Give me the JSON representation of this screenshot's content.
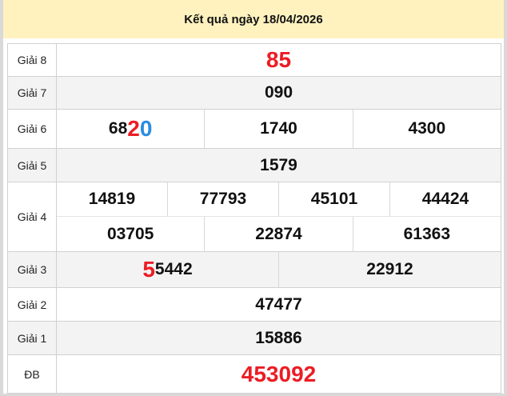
{
  "header": {
    "title": "Kết quả ngày 18/04/2026"
  },
  "colors": {
    "header_bg": "#fff2bf",
    "highlight_red": "#ec1c24",
    "highlight_blue": "#2a8de0",
    "shade": "#f3f3f3"
  },
  "prizes": {
    "g8": {
      "label": "Giải 8",
      "values": [
        "85"
      ]
    },
    "g7": {
      "label": "Giải 7",
      "values": [
        "090"
      ]
    },
    "g6": {
      "label": "Giải 6",
      "values": [
        "6820",
        "1740",
        "4300"
      ],
      "first_parts": [
        "68",
        "2",
        "0"
      ]
    },
    "g5": {
      "label": "Giải 5",
      "values": [
        "1579"
      ]
    },
    "g4": {
      "label": "Giải 4",
      "values": [
        "14819",
        "77793",
        "45101",
        "44424",
        "03705",
        "22874",
        "61363"
      ]
    },
    "g3": {
      "label": "Giải 3",
      "values": [
        "55442",
        "22912"
      ],
      "first_parts": [
        "5",
        "5442"
      ]
    },
    "g2": {
      "label": "Giải 2",
      "values": [
        "47477"
      ]
    },
    "g1": {
      "label": "Giải 1",
      "values": [
        "15886"
      ]
    },
    "db": {
      "label": "ĐB",
      "values": [
        "453092"
      ]
    }
  }
}
